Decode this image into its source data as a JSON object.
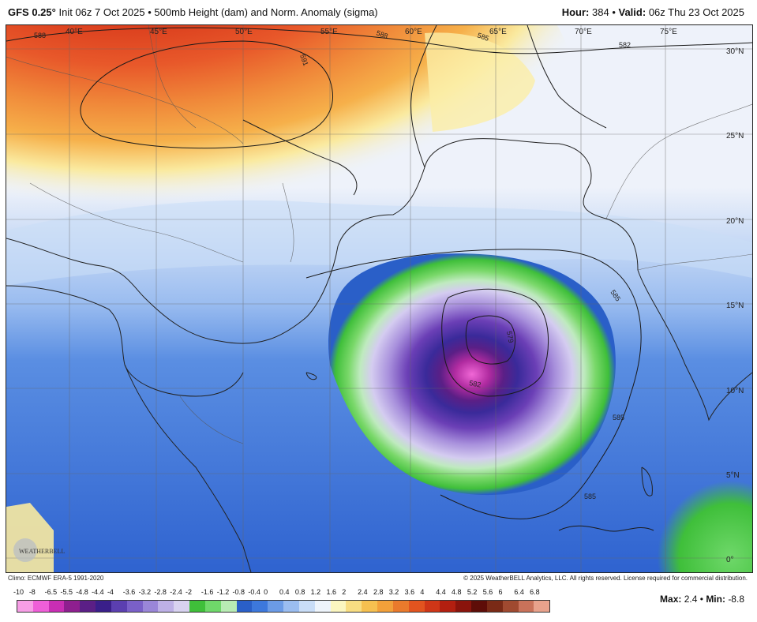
{
  "header": {
    "model": "GFS 0.25°",
    "init": "Init 06z 7 Oct 2025",
    "product": "500mb Height (dam) and Norm. Anomaly (sigma)",
    "hour_label": "Hour:",
    "hour": "384",
    "valid_label": "Valid:",
    "valid": "06z Thu 23 Oct 2025",
    "separator": "•"
  },
  "map": {
    "longitude_labels": [
      "40°E",
      "45°E",
      "50°E",
      "55°E",
      "60°E",
      "65°E",
      "70°E",
      "75°E"
    ],
    "latitude_labels": [
      "30°N",
      "25°N",
      "20°N",
      "15°N",
      "10°N",
      "5°N",
      "0°"
    ],
    "contour_labels": [
      "588",
      "591",
      "588",
      "585",
      "582",
      "585",
      "579",
      "582",
      "585",
      "585"
    ],
    "colors": {
      "strong_positive": "#a9190f",
      "positive": "#e8582a",
      "weak_positive": "#f6b04a",
      "neutral": "#eef2fa",
      "weak_negative": "#8fb2ea",
      "negative": "#3d6fd6",
      "green_ring": "#3fbf3a",
      "light_green": "#bfeabf",
      "lavender": "#c8b6ea",
      "purple": "#6b3fb6",
      "magenta": "#b02ba0",
      "pink": "#f067d6"
    }
  },
  "footer": {
    "climo": "Climo: ECMWF ERA-5 1991-2020",
    "copyright": "© 2025 WeatherBELL Analytics, LLC. All rights reserved. License required for commercial distribution."
  },
  "logo": {
    "text": "WEATHERBELL"
  },
  "legend": {
    "ticks": [
      "-10",
      "-8",
      "-6.5",
      "-5.5",
      "-4.8",
      "-4.4",
      "-4",
      "-3.6",
      "-3.2",
      "-2.8",
      "-2.4",
      "-2",
      "-1.6",
      "-1.2",
      "-0.8",
      "-0.4",
      "0",
      "0.4",
      "0.8",
      "1.2",
      "1.6",
      "2",
      "2.4",
      "2.8",
      "3.2",
      "3.6",
      "4",
      "4.4",
      "4.8",
      "5.2",
      "5.6",
      "6",
      "6.4",
      "6.8"
    ],
    "colors": [
      "#f79ee6",
      "#ef5fd8",
      "#c92eb4",
      "#8e1f8f",
      "#5b1f86",
      "#3a1f8a",
      "#5b3fb0",
      "#7a60c8",
      "#9a86d8",
      "#bdb0e6",
      "#d8d2f0",
      "#3fbf3a",
      "#6fd86a",
      "#b8ecb4",
      "#2a5fc8",
      "#3d78dc",
      "#6b9be6",
      "#9bbdf0",
      "#c9ddf7",
      "#eef4fb",
      "#fbf6c0",
      "#f8dd82",
      "#f6c050",
      "#f2a03a",
      "#ea7a2c",
      "#e2541f",
      "#cf3617",
      "#b31f10",
      "#8a140c",
      "#5e0d08",
      "#7a2a16",
      "#a04a30",
      "#c9725a",
      "#e8a28c"
    ],
    "max_label": "Max:",
    "max": "2.4",
    "min_label": "Min:",
    "min": "-8.8",
    "separator": "•"
  }
}
